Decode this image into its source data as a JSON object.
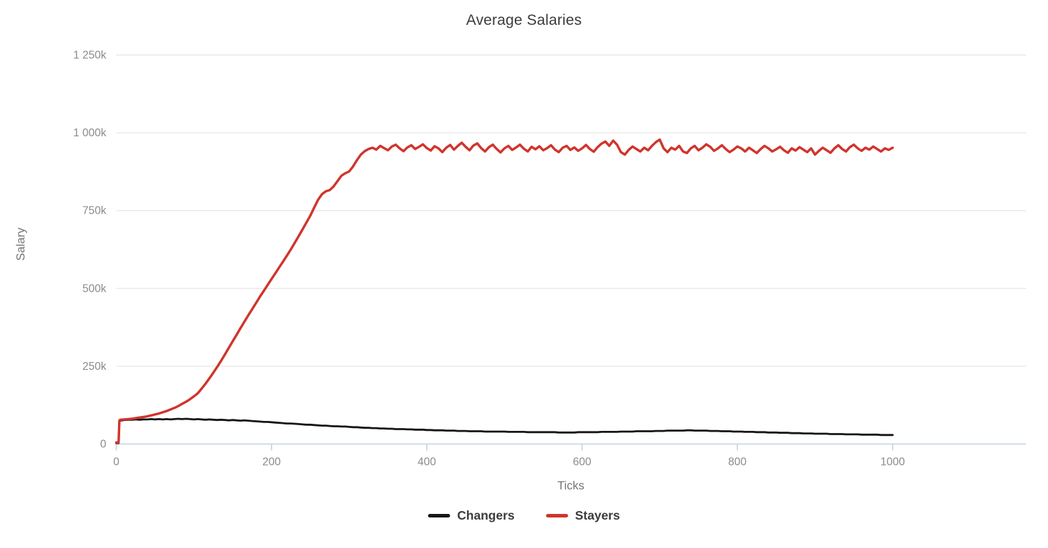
{
  "title": "Average Salaries",
  "colors": {
    "changers": "#161616",
    "stayers": "#d0342c",
    "axis_line": "#c6d0e2",
    "gridline": "#e8e8e8",
    "tick_label": "#8b8b8b",
    "axis_title": "#757575",
    "title_text": "#3c3c3c",
    "background": "#ffffff"
  },
  "chart_data": {
    "type": "line",
    "title": "Average Salaries",
    "xlabel": "Ticks",
    "ylabel": "Salary",
    "x_axis_range_ticks": [
      0,
      1172
    ],
    "y_axis_range_salary": [
      0,
      1250000
    ],
    "values_unit": "thousands of salary",
    "grid": true,
    "legend_position": "bottom",
    "x_ticks": [
      {
        "value": 0,
        "label": "0"
      },
      {
        "value": 200,
        "label": "200"
      },
      {
        "value": 400,
        "label": "400"
      },
      {
        "value": 600,
        "label": "600"
      },
      {
        "value": 800,
        "label": "800"
      },
      {
        "value": 1000,
        "label": "1000"
      }
    ],
    "y_ticks": [
      {
        "value": 0,
        "label": "0"
      },
      {
        "value": 250,
        "label": "250k"
      },
      {
        "value": 500,
        "label": "500k"
      },
      {
        "value": 750,
        "label": "750k"
      },
      {
        "value": 1000,
        "label": "1 000k"
      },
      {
        "value": 1250,
        "label": "1 250k"
      }
    ],
    "x": [
      0,
      3,
      4,
      5,
      10,
      15,
      20,
      25,
      30,
      35,
      40,
      45,
      50,
      55,
      60,
      65,
      70,
      75,
      80,
      85,
      90,
      95,
      100,
      105,
      110,
      115,
      120,
      125,
      130,
      135,
      140,
      145,
      150,
      155,
      160,
      165,
      170,
      175,
      180,
      185,
      190,
      195,
      200,
      205,
      210,
      215,
      220,
      225,
      230,
      235,
      240,
      245,
      250,
      255,
      260,
      265,
      270,
      275,
      280,
      285,
      290,
      295,
      300,
      305,
      310,
      315,
      320,
      325,
      330,
      335,
      340,
      345,
      350,
      355,
      360,
      365,
      370,
      375,
      380,
      385,
      390,
      395,
      400,
      405,
      410,
      415,
      420,
      425,
      430,
      435,
      440,
      445,
      450,
      455,
      460,
      465,
      470,
      475,
      480,
      485,
      490,
      495,
      500,
      505,
      510,
      515,
      520,
      525,
      530,
      535,
      540,
      545,
      550,
      555,
      560,
      565,
      570,
      575,
      580,
      585,
      590,
      595,
      600,
      605,
      610,
      615,
      620,
      625,
      630,
      635,
      640,
      645,
      650,
      655,
      660,
      665,
      670,
      675,
      680,
      685,
      690,
      695,
      700,
      705,
      710,
      715,
      720,
      725,
      730,
      735,
      740,
      745,
      750,
      755,
      760,
      765,
      770,
      775,
      780,
      785,
      790,
      795,
      800,
      805,
      810,
      815,
      820,
      825,
      830,
      835,
      840,
      845,
      850,
      855,
      860,
      865,
      870,
      875,
      880,
      885,
      890,
      895,
      900,
      905,
      910,
      915,
      920,
      925,
      930,
      935,
      940,
      945,
      950,
      955,
      960,
      965,
      970,
      975,
      980,
      985,
      990,
      995,
      1000
    ],
    "series": [
      {
        "name": "Changers",
        "color": "#161616",
        "line_width": 2.8,
        "values": [
          3,
          3,
          74,
          75,
          77,
          78,
          78,
          79,
          78,
          79,
          79,
          80,
          79,
          80,
          79,
          80,
          79,
          80,
          81,
          80,
          81,
          80,
          79,
          80,
          79,
          78,
          79,
          78,
          77,
          78,
          77,
          76,
          77,
          76,
          75,
          76,
          75,
          74,
          73,
          72,
          71,
          71,
          70,
          69,
          68,
          67,
          66,
          66,
          65,
          64,
          63,
          62,
          62,
          61,
          60,
          59,
          59,
          58,
          57,
          57,
          56,
          56,
          55,
          54,
          54,
          53,
          52,
          52,
          51,
          51,
          50,
          50,
          49,
          49,
          48,
          48,
          48,
          47,
          47,
          46,
          46,
          46,
          45,
          45,
          44,
          44,
          44,
          43,
          43,
          43,
          42,
          42,
          42,
          41,
          41,
          41,
          41,
          40,
          40,
          40,
          40,
          40,
          40,
          39,
          39,
          39,
          39,
          39,
          38,
          38,
          38,
          38,
          38,
          38,
          38,
          38,
          37,
          37,
          37,
          37,
          37,
          38,
          38,
          38,
          38,
          38,
          38,
          39,
          39,
          39,
          39,
          39,
          40,
          40,
          40,
          40,
          41,
          41,
          41,
          41,
          41,
          42,
          42,
          42,
          43,
          43,
          43,
          43,
          43,
          44,
          44,
          43,
          43,
          43,
          43,
          42,
          42,
          42,
          41,
          41,
          41,
          40,
          40,
          40,
          39,
          39,
          39,
          38,
          38,
          38,
          37,
          37,
          37,
          36,
          36,
          36,
          35,
          35,
          35,
          34,
          34,
          34,
          33,
          33,
          33,
          33,
          32,
          32,
          32,
          32,
          31,
          31,
          31,
          31,
          30,
          30,
          30,
          30,
          30,
          29,
          29,
          29,
          29
        ],
        "end_value_k": 29,
        "description": "starts near 0, jumps to ~75k, slowly declines to ~30k"
      },
      {
        "name": "Stayers",
        "color": "#d0342c",
        "line_width": 3.4,
        "values": [
          5,
          5,
          75,
          78,
          79,
          80,
          81,
          83,
          85,
          87,
          89,
          92,
          95,
          98,
          102,
          106,
          111,
          116,
          122,
          129,
          136,
          144,
          153,
          163,
          178,
          194,
          211,
          229,
          248,
          267,
          288,
          309,
          330,
          351,
          372,
          393,
          413,
          433,
          453,
          473,
          492,
          511,
          530,
          549,
          568,
          587,
          606,
          626,
          647,
          668,
          690,
          712,
          734,
          760,
          785,
          803,
          812,
          816,
          828,
          845,
          862,
          870,
          876,
          892,
          912,
          930,
          941,
          948,
          952,
          946,
          958,
          951,
          944,
          956,
          962,
          950,
          941,
          953,
          960,
          948,
          955,
          963,
          951,
          943,
          957,
          950,
          938,
          952,
          961,
          946,
          958,
          968,
          955,
          944,
          959,
          966,
          951,
          940,
          954,
          962,
          948,
          937,
          950,
          958,
          945,
          953,
          962,
          949,
          940,
          955,
          947,
          957,
          944,
          951,
          960,
          946,
          938,
          952,
          958,
          945,
          953,
          942,
          950,
          961,
          948,
          939,
          954,
          965,
          972,
          958,
          975,
          962,
          938,
          930,
          945,
          956,
          948,
          940,
          952,
          944,
          958,
          970,
          978,
          950,
          938,
          952,
          946,
          958,
          940,
          935,
          950,
          958,
          944,
          952,
          963,
          955,
          942,
          950,
          960,
          948,
          938,
          946,
          956,
          950,
          940,
          952,
          944,
          935,
          948,
          958,
          950,
          940,
          947,
          955,
          944,
          936,
          950,
          943,
          954,
          946,
          938,
          950,
          930,
          942,
          952,
          944,
          936,
          950,
          960,
          948,
          940,
          954,
          962,
          950,
          942,
          952,
          946,
          956,
          948,
          940,
          950,
          945,
          952
        ],
        "plateau_value_k": 952,
        "description": "starts near 0, jumps to ~78k, S-curve rise, plateaus ~950k after tick 300"
      }
    ]
  },
  "legend": {
    "items": [
      {
        "label": "Changers",
        "color": "#161616"
      },
      {
        "label": "Stayers",
        "color": "#d0342c"
      }
    ]
  }
}
